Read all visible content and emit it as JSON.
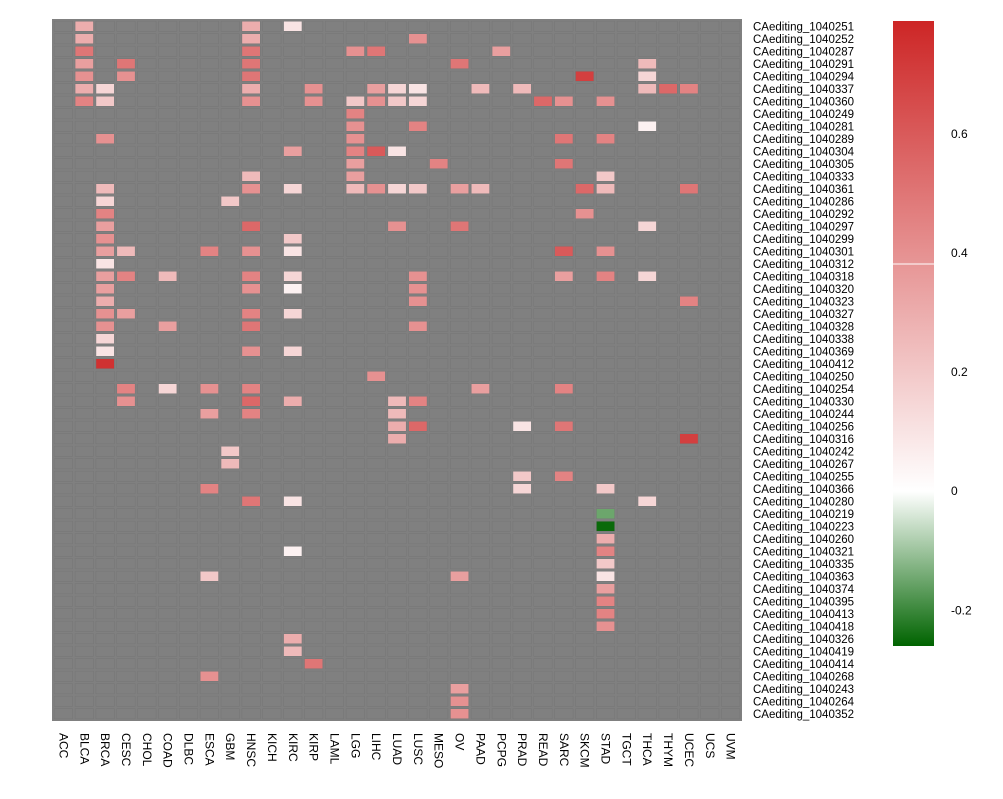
{
  "chart_data": {
    "type": "heatmap",
    "title": "",
    "xlabel": "",
    "ylabel": "",
    "columns": [
      "ACC",
      "BLCA",
      "BRCA",
      "CESC",
      "CHOL",
      "COAD",
      "DLBC",
      "ESCA",
      "GBM",
      "HNSC",
      "KICH",
      "KIRC",
      "KIRP",
      "LAML",
      "LGG",
      "LIHC",
      "LUAD",
      "LUSC",
      "MESO",
      "OV",
      "PAAD",
      "PCPG",
      "PRAD",
      "READ",
      "SARC",
      "SKCM",
      "STAD",
      "TGCT",
      "THCA",
      "THYM",
      "UCEC",
      "UCS",
      "UVM"
    ],
    "rows": [
      "CAediting_1040251",
      "CAediting_1040252",
      "CAediting_1040287",
      "CAediting_1040291",
      "CAediting_1040294",
      "CAediting_1040337",
      "CAediting_1040360",
      "CAediting_1040249",
      "CAediting_1040281",
      "CAediting_1040289",
      "CAediting_1040304",
      "CAediting_1040305",
      "CAediting_1040333",
      "CAediting_1040361",
      "CAediting_1040286",
      "CAediting_1040292",
      "CAediting_1040297",
      "CAediting_1040299",
      "CAediting_1040301",
      "CAediting_1040312",
      "CAediting_1040318",
      "CAediting_1040320",
      "CAediting_1040323",
      "CAediting_1040327",
      "CAediting_1040328",
      "CAediting_1040338",
      "CAediting_1040369",
      "CAediting_1040412",
      "CAediting_1040250",
      "CAediting_1040254",
      "CAediting_1040330",
      "CAediting_1040244",
      "CAediting_1040256",
      "CAediting_1040316",
      "CAediting_1040242",
      "CAediting_1040267",
      "CAediting_1040255",
      "CAediting_1040366",
      "CAediting_1040280",
      "CAediting_1040219",
      "CAediting_1040223",
      "CAediting_1040260",
      "CAediting_1040321",
      "CAediting_1040335",
      "CAediting_1040363",
      "CAediting_1040374",
      "CAediting_1040395",
      "CAediting_1040413",
      "CAediting_1040418",
      "CAediting_1040326",
      "CAediting_1040419",
      "CAediting_1040414",
      "CAediting_1040268",
      "CAediting_1040243",
      "CAediting_1040264",
      "CAediting_1040352"
    ],
    "na_color": "#808080",
    "values": [
      [
        1,
        "BLCA",
        0.3
      ],
      [
        1,
        "HNSC",
        0.3
      ],
      [
        1,
        "KIRC",
        0.1
      ],
      [
        2,
        "BLCA",
        0.3
      ],
      [
        2,
        "HNSC",
        0.3
      ],
      [
        2,
        "LUSC",
        0.4
      ],
      [
        3,
        "BLCA",
        0.5
      ],
      [
        3,
        "HNSC",
        0.5
      ],
      [
        3,
        "LGG",
        0.4
      ],
      [
        3,
        "LIHC",
        0.5
      ],
      [
        3,
        "PCPG",
        0.35
      ],
      [
        4,
        "BLCA",
        0.35
      ],
      [
        4,
        "CESC",
        0.5
      ],
      [
        4,
        "HNSC",
        0.5
      ],
      [
        4,
        "OV",
        0.5
      ],
      [
        4,
        "THCA",
        0.25
      ],
      [
        5,
        "BLCA",
        0.4
      ],
      [
        5,
        "CESC",
        0.4
      ],
      [
        5,
        "HNSC",
        0.5
      ],
      [
        5,
        "SKCM",
        0.7
      ],
      [
        5,
        "THCA",
        0.15
      ],
      [
        6,
        "BLCA",
        0.3
      ],
      [
        6,
        "BRCA",
        0.15
      ],
      [
        6,
        "HNSC",
        0.3
      ],
      [
        6,
        "KIRP",
        0.4
      ],
      [
        6,
        "LIHC",
        0.35
      ],
      [
        6,
        "LUAD",
        0.15
      ],
      [
        6,
        "LUSC",
        0.1
      ],
      [
        6,
        "PAAD",
        0.25
      ],
      [
        6,
        "PRAD",
        0.25
      ],
      [
        6,
        "THCA",
        0.25
      ],
      [
        6,
        "THYM",
        0.55
      ],
      [
        6,
        "UCEC",
        0.45
      ],
      [
        7,
        "BLCA",
        0.45
      ],
      [
        7,
        "BRCA",
        0.2
      ],
      [
        7,
        "HNSC",
        0.4
      ],
      [
        7,
        "KIRP",
        0.4
      ],
      [
        7,
        "LGG",
        0.2
      ],
      [
        7,
        "LIHC",
        0.4
      ],
      [
        7,
        "LUAD",
        0.2
      ],
      [
        7,
        "LUSC",
        0.15
      ],
      [
        7,
        "READ",
        0.55
      ],
      [
        7,
        "SARC",
        0.4
      ],
      [
        7,
        "STAD",
        0.4
      ],
      [
        8,
        "LGG",
        0.45
      ],
      [
        9,
        "LGG",
        0.4
      ],
      [
        9,
        "LUSC",
        0.45
      ],
      [
        9,
        "THCA",
        0.05
      ],
      [
        10,
        "BRCA",
        0.4
      ],
      [
        10,
        "LGG",
        0.4
      ],
      [
        10,
        "SARC",
        0.5
      ],
      [
        10,
        "STAD",
        0.45
      ],
      [
        11,
        "KIRC",
        0.35
      ],
      [
        11,
        "LGG",
        0.45
      ],
      [
        11,
        "LIHC",
        0.6
      ],
      [
        11,
        "LUAD",
        0.1
      ],
      [
        12,
        "LGG",
        0.35
      ],
      [
        12,
        "MESO",
        0.45
      ],
      [
        12,
        "SARC",
        0.5
      ],
      [
        13,
        "HNSC",
        0.25
      ],
      [
        13,
        "LGG",
        0.35
      ],
      [
        13,
        "STAD",
        0.2
      ],
      [
        14,
        "BRCA",
        0.25
      ],
      [
        14,
        "HNSC",
        0.4
      ],
      [
        14,
        "KIRC",
        0.15
      ],
      [
        14,
        "LGG",
        0.25
      ],
      [
        14,
        "LIHC",
        0.4
      ],
      [
        14,
        "LUAD",
        0.15
      ],
      [
        14,
        "LUSC",
        0.2
      ],
      [
        14,
        "OV",
        0.35
      ],
      [
        14,
        "PAAD",
        0.25
      ],
      [
        14,
        "SKCM",
        0.55
      ],
      [
        14,
        "STAD",
        0.25
      ],
      [
        14,
        "UCEC",
        0.5
      ],
      [
        15,
        "BRCA",
        0.15
      ],
      [
        15,
        "GBM",
        0.2
      ],
      [
        16,
        "BRCA",
        0.45
      ],
      [
        16,
        "SKCM",
        0.4
      ],
      [
        17,
        "BRCA",
        0.35
      ],
      [
        17,
        "HNSC",
        0.55
      ],
      [
        17,
        "LUAD",
        0.4
      ],
      [
        17,
        "OV",
        0.5
      ],
      [
        17,
        "THCA",
        0.15
      ],
      [
        18,
        "BRCA",
        0.4
      ],
      [
        18,
        "KIRC",
        0.2
      ],
      [
        19,
        "BRCA",
        0.35
      ],
      [
        19,
        "CESC",
        0.25
      ],
      [
        19,
        "ESCA",
        0.45
      ],
      [
        19,
        "HNSC",
        0.4
      ],
      [
        19,
        "KIRC",
        0.1
      ],
      [
        19,
        "SARC",
        0.6
      ],
      [
        19,
        "STAD",
        0.4
      ],
      [
        20,
        "BRCA",
        0.1
      ],
      [
        21,
        "BRCA",
        0.35
      ],
      [
        21,
        "CESC",
        0.45
      ],
      [
        21,
        "COAD",
        0.25
      ],
      [
        21,
        "HNSC",
        0.45
      ],
      [
        21,
        "KIRC",
        0.15
      ],
      [
        21,
        "LUSC",
        0.4
      ],
      [
        21,
        "SARC",
        0.35
      ],
      [
        21,
        "STAD",
        0.45
      ],
      [
        21,
        "THCA",
        0.15
      ],
      [
        22,
        "BRCA",
        0.35
      ],
      [
        22,
        "HNSC",
        0.4
      ],
      [
        22,
        "KIRC",
        0.05
      ],
      [
        22,
        "LUSC",
        0.4
      ],
      [
        23,
        "BRCA",
        0.3
      ],
      [
        23,
        "LUSC",
        0.4
      ],
      [
        23,
        "UCEC",
        0.45
      ],
      [
        24,
        "BRCA",
        0.4
      ],
      [
        24,
        "CESC",
        0.35
      ],
      [
        24,
        "HNSC",
        0.45
      ],
      [
        24,
        "KIRC",
        0.15
      ],
      [
        25,
        "BRCA",
        0.4
      ],
      [
        25,
        "COAD",
        0.35
      ],
      [
        25,
        "HNSC",
        0.5
      ],
      [
        25,
        "LUSC",
        0.4
      ],
      [
        26,
        "BRCA",
        0.15
      ],
      [
        27,
        "BRCA",
        0.1
      ],
      [
        27,
        "HNSC",
        0.4
      ],
      [
        27,
        "KIRC",
        0.15
      ],
      [
        28,
        "BRCA",
        0.75
      ],
      [
        29,
        "LIHC",
        0.4
      ],
      [
        30,
        "CESC",
        0.45
      ],
      [
        30,
        "COAD",
        0.15
      ],
      [
        30,
        "ESCA",
        0.4
      ],
      [
        30,
        "HNSC",
        0.45
      ],
      [
        30,
        "PAAD",
        0.35
      ],
      [
        30,
        "SARC",
        0.45
      ],
      [
        31,
        "CESC",
        0.4
      ],
      [
        31,
        "HNSC",
        0.55
      ],
      [
        31,
        "KIRC",
        0.3
      ],
      [
        31,
        "LUAD",
        0.25
      ],
      [
        31,
        "LUSC",
        0.45
      ],
      [
        32,
        "ESCA",
        0.35
      ],
      [
        32,
        "HNSC",
        0.45
      ],
      [
        32,
        "LUAD",
        0.25
      ],
      [
        33,
        "LUAD",
        0.3
      ],
      [
        33,
        "LUSC",
        0.55
      ],
      [
        33,
        "PRAD",
        0.1
      ],
      [
        33,
        "SARC",
        0.5
      ],
      [
        34,
        "LUAD",
        0.3
      ],
      [
        34,
        "UCEC",
        0.7
      ],
      [
        35,
        "GBM",
        0.2
      ],
      [
        36,
        "GBM",
        0.25
      ],
      [
        37,
        "PRAD",
        0.2
      ],
      [
        37,
        "SARC",
        0.45
      ],
      [
        38,
        "ESCA",
        0.45
      ],
      [
        38,
        "PRAD",
        0.15
      ],
      [
        38,
        "STAD",
        0.2
      ],
      [
        39,
        "HNSC",
        0.5
      ],
      [
        39,
        "KIRC",
        0.1
      ],
      [
        39,
        "THCA",
        0.15
      ],
      [
        40,
        "STAD",
        -0.15
      ],
      [
        41,
        "STAD",
        -0.25
      ],
      [
        42,
        "STAD",
        0.3
      ],
      [
        43,
        "KIRC",
        0.05
      ],
      [
        43,
        "STAD",
        0.45
      ],
      [
        44,
        "STAD",
        0.2
      ],
      [
        45,
        "ESCA",
        0.2
      ],
      [
        45,
        "OV",
        0.35
      ],
      [
        45,
        "STAD",
        0.1
      ],
      [
        46,
        "STAD",
        0.35
      ],
      [
        47,
        "STAD",
        0.45
      ],
      [
        48,
        "STAD",
        0.45
      ],
      [
        49,
        "STAD",
        0.4
      ],
      [
        50,
        "KIRC",
        0.3
      ],
      [
        51,
        "KIRC",
        0.25
      ],
      [
        52,
        "KIRP",
        0.5
      ],
      [
        53,
        "ESCA",
        0.4
      ],
      [
        54,
        "OV",
        0.35
      ],
      [
        55,
        "OV",
        0.4
      ],
      [
        56,
        "OV",
        0.4
      ]
    ],
    "colorbar": {
      "min": -0.26,
      "max": 0.79,
      "ticks": [
        0.6,
        0.4,
        0.2,
        0,
        -0.2
      ],
      "tick_labels": [
        "0.6",
        "0.4",
        "0.2",
        "0",
        "-0.2"
      ],
      "low_color": "#006400",
      "mid_color": "#ffffff",
      "high_color": "#cd2626",
      "break_value": 0.39
    }
  }
}
